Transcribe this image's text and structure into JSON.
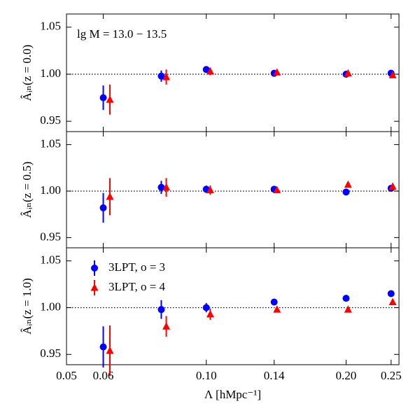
{
  "chart_data": [
    {
      "type": "scatter",
      "xscale": "log",
      "xlim": [
        0.05,
        0.26
      ],
      "ylim": [
        0.939,
        1.064
      ],
      "yticks": [
        0.95,
        {
          "value": 1,
          "label": "1.00"
        },
        1.05
      ],
      "ylabel": "Âᵢₙ(z = 0.0)",
      "hline": 1,
      "annotation": "lg M = 13.0 − 13.5",
      "series": [
        {
          "color": "#0000ff",
          "marker": "circle",
          "x": [
            0.06,
            0.08,
            0.1,
            0.14,
            0.2,
            0.25
          ],
          "values": [
            0.975,
            0.998,
            1.005,
            1.001,
            1.0,
            1.001
          ],
          "errors": [
            0.013,
            0.006,
            0.003,
            null,
            null,
            null
          ]
        },
        {
          "color": "#ff0000",
          "marker": "triangle",
          "x": [
            0.062,
            0.082,
            0.102,
            0.142,
            0.202,
            0.252
          ],
          "values": [
            0.973,
            0.997,
            1.003,
            1.002,
            1.001,
            0.999
          ],
          "errors": [
            0.016,
            0.008,
            0.004,
            null,
            null,
            null
          ]
        }
      ]
    },
    {
      "type": "scatter",
      "xscale": "log",
      "xlim": [
        0.05,
        0.26
      ],
      "ylim": [
        0.939,
        1.064
      ],
      "yticks": [
        0.95,
        {
          "value": 1,
          "label": "1.00"
        },
        1.05
      ],
      "ylabel": "Âᵢₙ(z = 0.5)",
      "hline": 1,
      "series": [
        {
          "color": "#0000ff",
          "marker": "circle",
          "x": [
            0.06,
            0.08,
            0.1,
            0.14,
            0.2,
            0.25
          ],
          "values": [
            0.982,
            1.004,
            1.002,
            1.002,
            0.999,
            1.003
          ],
          "errors": [
            0.016,
            0.007,
            0.004,
            null,
            null,
            null
          ]
        },
        {
          "color": "#ff0000",
          "marker": "triangle",
          "x": [
            0.062,
            0.082,
            0.102,
            0.142,
            0.202,
            0.252
          ],
          "values": [
            0.994,
            1.004,
            1.001,
            1.001,
            1.007,
            1.005
          ],
          "errors": [
            0.02,
            0.01,
            0.005,
            null,
            null,
            null
          ]
        }
      ]
    },
    {
      "type": "scatter",
      "xscale": "log",
      "xlim": [
        0.05,
        0.26
      ],
      "ylim": [
        0.939,
        1.064
      ],
      "yticks": [
        0.95,
        {
          "value": 1,
          "label": "1.00"
        },
        1.05
      ],
      "ylabel": "Âᵢₙ(z = 1.0)",
      "hline": 1,
      "xticks": [
        0.05,
        0.06,
        {
          "value": 0.1,
          "label": "0.10"
        },
        0.14,
        {
          "value": 0.2,
          "label": "0.20"
        },
        0.25
      ],
      "xlabel": "Λ [hMpc⁻¹]",
      "series": [
        {
          "name": "3LPT, o = 3",
          "color": "#0000ff",
          "marker": "circle",
          "x": [
            0.06,
            0.08,
            0.1,
            0.14,
            0.2,
            0.25
          ],
          "values": [
            0.958,
            0.998,
            1.0,
            1.006,
            1.01,
            1.015
          ],
          "errors": [
            0.022,
            0.01,
            0.005,
            null,
            null,
            null
          ]
        },
        {
          "name": "3LPT, o = 4",
          "color": "#ff0000",
          "marker": "triangle",
          "x": [
            0.062,
            0.082,
            0.102,
            0.142,
            0.202,
            0.252
          ],
          "values": [
            0.954,
            0.98,
            0.993,
            0.998,
            0.998,
            1.006
          ],
          "errors": [
            0.027,
            0.011,
            0.006,
            null,
            null,
            null
          ]
        }
      ]
    }
  ]
}
